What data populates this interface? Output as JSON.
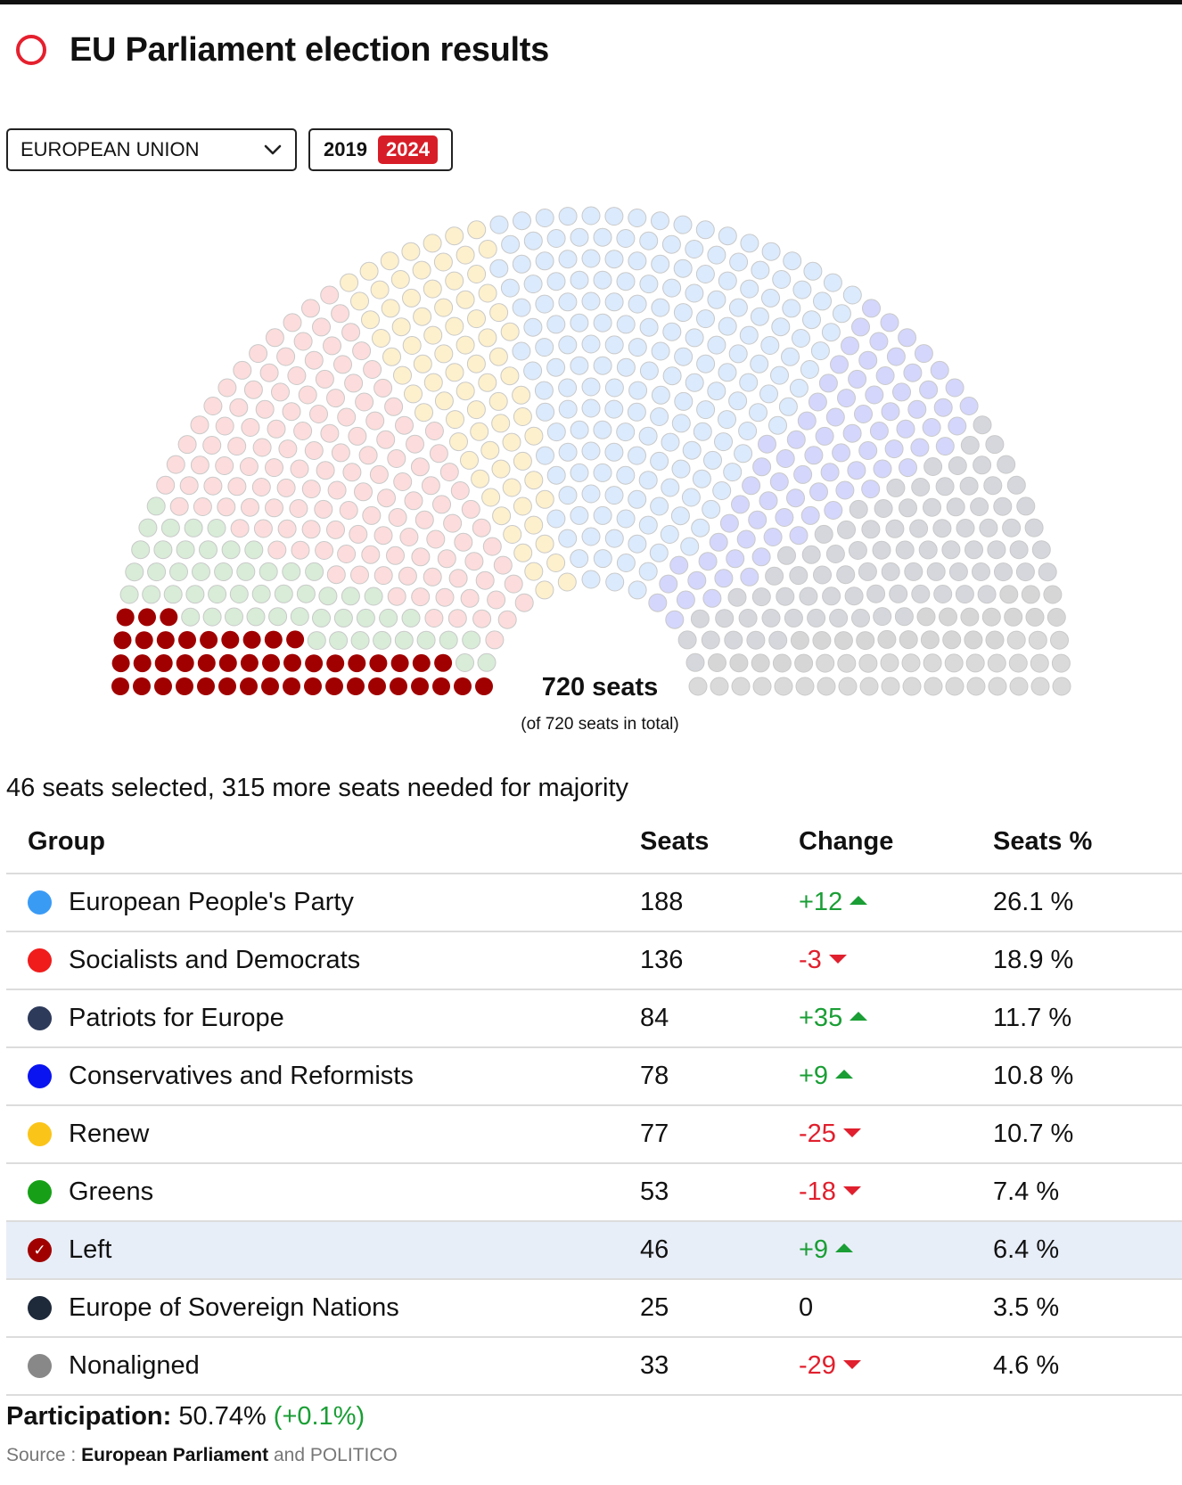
{
  "header": {
    "title": "EU Parliament election results"
  },
  "controls": {
    "region_select": "EUROPEAN UNION",
    "years": [
      "2019",
      "2024"
    ],
    "active_year": "2024"
  },
  "hemicycle": {
    "total_label": "720 seats",
    "subtitle": "(of 720 seats in total)"
  },
  "selection_note": "46 seats selected, 315 more seats needed for majority",
  "table": {
    "headers": {
      "group": "Group",
      "seats": "Seats",
      "change": "Change",
      "pct": "Seats %"
    },
    "rows": [
      {
        "name": "European People's Party",
        "seats": "188",
        "change": "+12",
        "trend": "up",
        "pct": "26.1 %",
        "color": "#3a9bf5",
        "light": "#dbeafc",
        "selected": false
      },
      {
        "name": "Socialists and Democrats",
        "seats": "136",
        "change": "-3",
        "trend": "down",
        "pct": "18.9 %",
        "color": "#f01c1c",
        "light": "#fcdcdc",
        "selected": false
      },
      {
        "name": "Patriots for Europe",
        "seats": "84",
        "change": "+35",
        "trend": "up",
        "pct": "11.7 %",
        "color": "#2e3a5a",
        "light": "#d5d7dd",
        "selected": false
      },
      {
        "name": "Conservatives and Reformists",
        "seats": "78",
        "change": "+9",
        "trend": "up",
        "pct": "10.8 %",
        "color": "#0a14f0",
        "light": "#d4d6fb",
        "selected": false
      },
      {
        "name": "Renew",
        "seats": "77",
        "change": "-25",
        "trend": "down",
        "pct": "10.7 %",
        "color": "#fbc419",
        "light": "#fdf0cc",
        "selected": false
      },
      {
        "name": "Greens",
        "seats": "53",
        "change": "-18",
        "trend": "down",
        "pct": "7.4 %",
        "color": "#17a017",
        "light": "#d8ecd8",
        "selected": false
      },
      {
        "name": "Left",
        "seats": "46",
        "change": "+9",
        "trend": "up",
        "pct": "6.4 %",
        "color": "#a00000",
        "light": "#a00000",
        "selected": true
      },
      {
        "name": "Europe of Sovereign Nations",
        "seats": "25",
        "change": "0",
        "trend": "none",
        "pct": "3.5 %",
        "color": "#1e2a3a",
        "light": "#d6d6d6",
        "selected": false
      },
      {
        "name": "Nonaligned",
        "seats": "33",
        "change": "-29",
        "trend": "down",
        "pct": "4.6 %",
        "color": "#888888",
        "light": "#dadada",
        "selected": false
      }
    ]
  },
  "footer": {
    "participation_label": "Participation:",
    "participation_value": "50.74%",
    "participation_change": "(+0.1%)",
    "source_prefix": "Source :",
    "source_main": "European Parliament",
    "source_suffix": "and POLITICO"
  }
}
